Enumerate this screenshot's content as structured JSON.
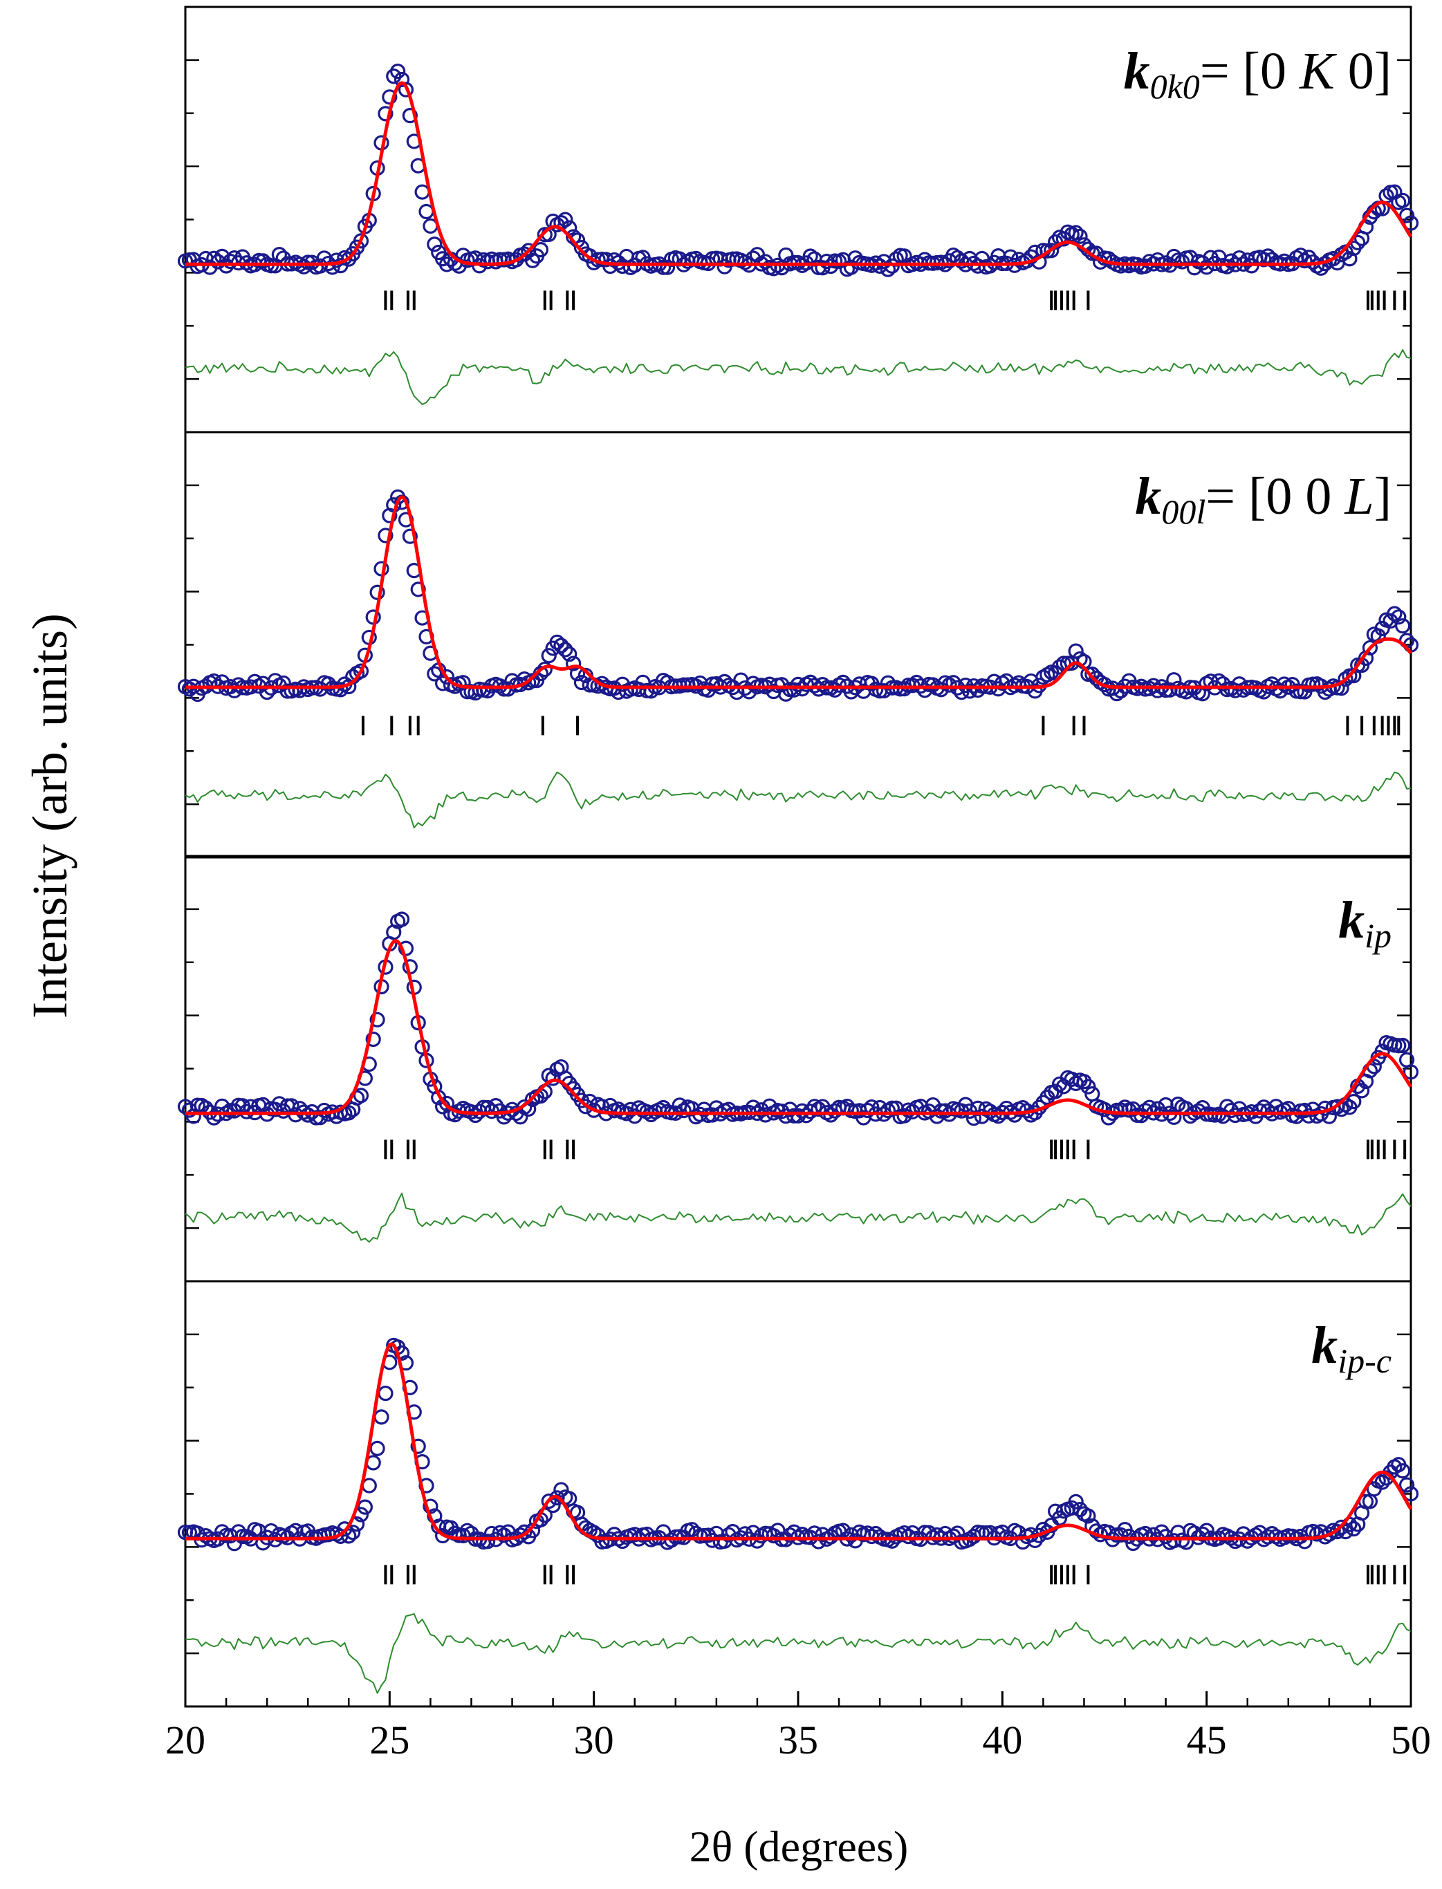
{
  "chart_data": {
    "type": "scatter",
    "description_title": "",
    "xlabel": "2θ (degrees)",
    "ylabel": "Intensity (arb. units)",
    "xlim": [
      20,
      50
    ],
    "x_ticks": [
      20,
      25,
      30,
      35,
      40,
      45,
      50
    ],
    "x_tick_labels": [
      "20",
      "25",
      "30",
      "35",
      "40",
      "45",
      "50"
    ],
    "y_tick_labels_shown": false,
    "legend": "none",
    "colors": {
      "observed": "#1a1a8c",
      "calculated": "#ff0000",
      "difference": "#2e8b2e",
      "reflections": "#000000",
      "axes": "#000000"
    },
    "common_observed": {
      "background": 0.12,
      "peaks": [
        {
          "center": 25.2,
          "height": 0.86,
          "width": 0.42
        },
        {
          "center": 29.15,
          "height": 0.18,
          "width": 0.35
        },
        {
          "center": 41.5,
          "height": 0.1,
          "width": 0.32
        },
        {
          "center": 41.95,
          "height": 0.08,
          "width": 0.25
        },
        {
          "center": 49.2,
          "height": 0.2,
          "width": 0.38
        },
        {
          "center": 49.75,
          "height": 0.22,
          "width": 0.3
        }
      ],
      "noise_amplitude": 0.025,
      "dx": 0.1
    },
    "panels": [
      {
        "label_main": "k",
        "label_sub": "0k0",
        "label_rest": "= [0 ",
        "label_italic": "K",
        "label_end": " 0]",
        "calc_peaks": [
          {
            "center": 25.3,
            "height": 0.82,
            "width": 0.5
          },
          {
            "center": 29.05,
            "height": 0.17,
            "width": 0.45
          },
          {
            "center": 41.6,
            "height": 0.1,
            "width": 0.45
          },
          {
            "center": 49.3,
            "height": 0.28,
            "width": 0.55
          }
        ],
        "calc_background": 0.11,
        "reflections": [
          24.9,
          25.05,
          25.45,
          25.6,
          28.8,
          28.95,
          29.35,
          29.5,
          41.2,
          41.3,
          41.45,
          41.6,
          41.75,
          42.1,
          48.95,
          49.05,
          49.2,
          49.35,
          49.6,
          49.85
        ]
      },
      {
        "label_main": "k",
        "label_sub": "00l",
        "label_rest": "= [0 0 ",
        "label_italic": "L",
        "label_end": "]",
        "calc_peaks": [
          {
            "center": 25.3,
            "height": 0.86,
            "width": 0.45
          },
          {
            "center": 28.85,
            "height": 0.09,
            "width": 0.3
          },
          {
            "center": 29.6,
            "height": 0.09,
            "width": 0.3
          },
          {
            "center": 41.8,
            "height": 0.11,
            "width": 0.3
          },
          {
            "center": 49.1,
            "height": 0.16,
            "width": 0.4
          },
          {
            "center": 49.8,
            "height": 0.16,
            "width": 0.4
          }
        ],
        "calc_background": 0.12,
        "reflections": [
          24.35,
          25.05,
          25.5,
          25.7,
          28.75,
          29.6,
          41.0,
          41.75,
          42.0,
          48.45,
          48.8,
          49.1,
          49.3,
          49.45,
          49.6,
          49.7
        ]
      },
      {
        "label_main": "k",
        "label_sub": "ip",
        "label_rest": "",
        "label_italic": "",
        "label_end": "",
        "calc_peaks": [
          {
            "center": 25.15,
            "height": 0.78,
            "width": 0.5
          },
          {
            "center": 29.05,
            "height": 0.15,
            "width": 0.45
          },
          {
            "center": 41.6,
            "height": 0.06,
            "width": 0.45
          },
          {
            "center": 49.3,
            "height": 0.27,
            "width": 0.55
          }
        ],
        "calc_background": 0.11,
        "reflections": [
          24.9,
          25.05,
          25.45,
          25.6,
          28.8,
          28.95,
          29.35,
          29.5,
          41.2,
          41.3,
          41.45,
          41.6,
          41.75,
          42.1,
          48.95,
          49.05,
          49.2,
          49.35,
          49.6,
          49.85
        ]
      },
      {
        "label_main": "k",
        "label_sub": "ip-c",
        "label_rest": "",
        "label_italic": "",
        "label_end": "",
        "calc_peaks": [
          {
            "center": 25.05,
            "height": 0.88,
            "width": 0.45
          },
          {
            "center": 29.05,
            "height": 0.19,
            "width": 0.35
          },
          {
            "center": 41.6,
            "height": 0.06,
            "width": 0.45
          },
          {
            "center": 49.3,
            "height": 0.3,
            "width": 0.55
          }
        ],
        "calc_background": 0.11,
        "reflections": [
          24.9,
          25.05,
          25.45,
          25.6,
          28.8,
          28.95,
          29.35,
          29.5,
          41.2,
          41.3,
          41.45,
          41.6,
          41.75,
          42.1,
          48.95,
          49.05,
          49.2,
          49.35,
          49.6,
          49.85
        ]
      }
    ]
  }
}
